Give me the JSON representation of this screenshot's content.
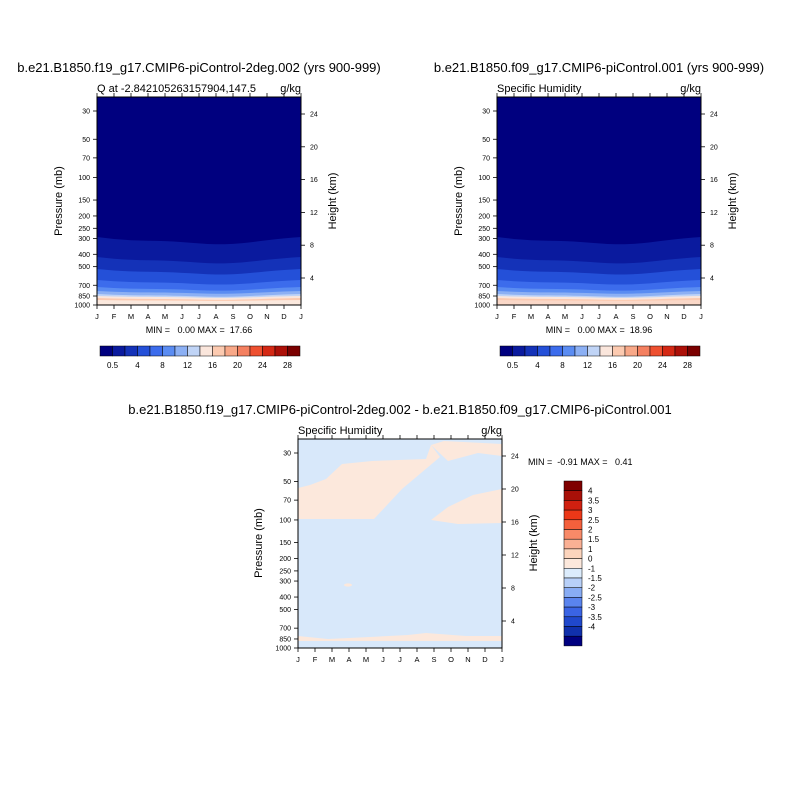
{
  "chart_data": [
    {
      "type": "contour",
      "id": "left",
      "title": "b.e21.B1850.f19_g17.CMIP6-piControl-2deg.002 (yrs 900-999)",
      "subtitle_left": "Q at -2.842105263157904,147.5",
      "subtitle_right": "g/kg",
      "ylabel": "Pressure (mb)",
      "ylabel_right": "Height (km)",
      "x_ticks": [
        "J",
        "F",
        "M",
        "A",
        "M",
        "J",
        "J",
        "A",
        "S",
        "O",
        "N",
        "D",
        "J"
      ],
      "p_ticks": [
        "30",
        "50",
        "70",
        "100",
        "150",
        "200",
        "250",
        "300",
        "400",
        "500",
        "700",
        "850",
        "1000"
      ],
      "p_tick_values": [
        30,
        50,
        70,
        100,
        150,
        200,
        250,
        300,
        400,
        500,
        700,
        850,
        1000
      ],
      "h_ticks": [
        "24",
        "20",
        "16",
        "12",
        "8",
        "4"
      ],
      "stats": "MIN =   0.00 MAX =  17.66",
      "colorbar_labels": [
        "0.5",
        "4",
        "8",
        "12",
        "16",
        "20",
        "24",
        "28"
      ]
    },
    {
      "type": "contour",
      "id": "right",
      "title": "b.e21.B1850.f09_g17.CMIP6-piControl.001 (yrs 900-999)",
      "subtitle_left": "Specific Humidity",
      "subtitle_right": "g/kg",
      "ylabel": "Pressure (mb)",
      "ylabel_right": "Height (km)",
      "x_ticks": [
        "J",
        "F",
        "M",
        "A",
        "M",
        "J",
        "J",
        "A",
        "S",
        "O",
        "N",
        "D",
        "J"
      ],
      "p_ticks": [
        "30",
        "50",
        "70",
        "100",
        "150",
        "200",
        "250",
        "300",
        "400",
        "500",
        "700",
        "850",
        "1000"
      ],
      "p_tick_values": [
        30,
        50,
        70,
        100,
        150,
        200,
        250,
        300,
        400,
        500,
        700,
        850,
        1000
      ],
      "h_ticks": [
        "24",
        "20",
        "16",
        "12",
        "8",
        "4"
      ],
      "stats": "MIN =   0.00 MAX =  18.96",
      "colorbar_labels": [
        "0.5",
        "4",
        "8",
        "12",
        "16",
        "20",
        "24",
        "28"
      ]
    },
    {
      "type": "contour",
      "id": "diff",
      "title": "b.e21.B1850.f19_g17.CMIP6-piControl-2deg.002 - b.e21.B1850.f09_g17.CMIP6-piControl.001",
      "subtitle_left": "Specific Humidity",
      "subtitle_right": "g/kg",
      "ylabel": "Pressure (mb)",
      "ylabel_right": "Height (km)",
      "x_ticks": [
        "J",
        "F",
        "M",
        "A",
        "M",
        "J",
        "J",
        "A",
        "S",
        "O",
        "N",
        "D",
        "J"
      ],
      "p_ticks": [
        "30",
        "50",
        "70",
        "100",
        "150",
        "200",
        "250",
        "300",
        "400",
        "500",
        "700",
        "850",
        "1000"
      ],
      "p_tick_values": [
        30,
        50,
        70,
        100,
        150,
        200,
        250,
        300,
        400,
        500,
        700,
        850,
        1000
      ],
      "h_ticks": [
        "24",
        "20",
        "16",
        "12",
        "8",
        "4"
      ],
      "stats": "MIN =  -0.91 MAX =   0.41",
      "colorbar_labels": [
        "4",
        "3.5",
        "3",
        "2.5",
        "2",
        "1.5",
        "1",
        "0",
        "-1",
        "-1.5",
        "-2",
        "-2.5",
        "-3",
        "-3.5",
        "-4"
      ]
    }
  ],
  "colors": {
    "seq_palette": [
      "#00007f",
      "#0a1a9e",
      "#1432b8",
      "#2450d8",
      "#3c6cec",
      "#5a8cf2",
      "#8cb0f4",
      "#c0d4f6",
      "#fae6dc",
      "#fccab0",
      "#f8a888",
      "#f48060",
      "#ee5030",
      "#d42814",
      "#ac1008",
      "#7a0000"
    ],
    "div_palette": [
      "#7f0000",
      "#a81008",
      "#d02010",
      "#ec3818",
      "#f4603c",
      "#f88a68",
      "#fab094",
      "#fcd4bc",
      "#fce8dc",
      "#dcecfc",
      "#b8d0f8",
      "#88acf4",
      "#5a84ee",
      "#3a64e4",
      "#2048cc",
      "#1030ac",
      "#000080"
    ],
    "diff_background": "#d8e8fa",
    "diff_positive": "#fce8dc"
  }
}
